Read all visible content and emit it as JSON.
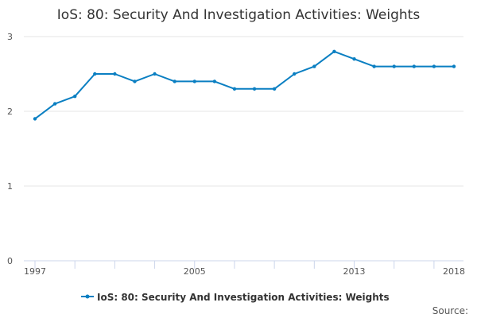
{
  "chart_data": {
    "type": "line",
    "title": "IoS: 80: Security And Investigation Activities: Weights",
    "xlabel": "",
    "ylabel": "",
    "x": [
      1997,
      1998,
      1999,
      2000,
      2001,
      2002,
      2003,
      2004,
      2005,
      2006,
      2007,
      2008,
      2009,
      2010,
      2011,
      2012,
      2013,
      2014,
      2015,
      2016,
      2017,
      2018
    ],
    "series": [
      {
        "name": "IoS: 80: Security And Investigation Activities: Weights",
        "values": [
          1.9,
          2.1,
          2.2,
          2.5,
          2.5,
          2.4,
          2.5,
          2.4,
          2.4,
          2.4,
          2.3,
          2.3,
          2.3,
          2.5,
          2.6,
          2.8,
          2.7,
          2.6,
          2.6,
          2.6,
          2.6,
          2.6
        ]
      }
    ],
    "ylim": [
      0,
      3
    ],
    "yticks": [
      "0",
      "1",
      "2",
      "3"
    ],
    "xtick_labels": [
      "1997",
      "2005",
      "2013",
      "2018"
    ],
    "grid": true,
    "legend_position": "bottom-center",
    "color": "#0a7fc2",
    "source_label": "Source:"
  }
}
